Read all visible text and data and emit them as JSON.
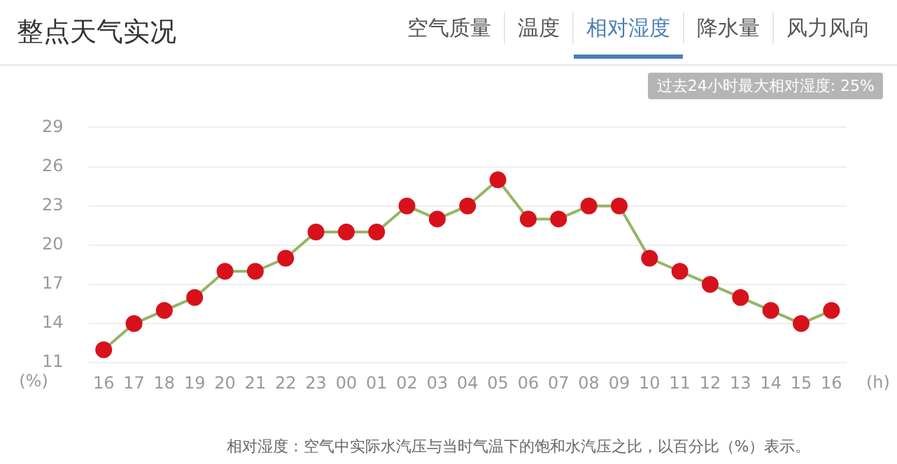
{
  "chart_data": {
    "type": "line",
    "title": "整点天气实况",
    "xlabel": "(h)",
    "ylabel": "(%)",
    "categories": [
      "16",
      "17",
      "18",
      "19",
      "20",
      "21",
      "22",
      "23",
      "00",
      "01",
      "02",
      "03",
      "04",
      "05",
      "06",
      "07",
      "08",
      "09",
      "10",
      "11",
      "12",
      "13",
      "14",
      "15",
      "16"
    ],
    "series": [
      {
        "color": "#94b565",
        "values": [
          12,
          14,
          15,
          16,
          18,
          18,
          19,
          21,
          21,
          21,
          23,
          22,
          23,
          25,
          22,
          22,
          23,
          23,
          19,
          18,
          17,
          16,
          15,
          14,
          15
        ]
      }
    ],
    "ylim": [
      11,
      29
    ],
    "yticks": [
      11,
      14,
      17,
      20,
      23,
      26,
      29
    ],
    "grid": "y",
    "legend": false,
    "marker": "circle",
    "line_style": "solid",
    "annotations": [
      "空气质量",
      "温度",
      "相对湿度",
      "降水量",
      "风力风向",
      "过去24小时最大相对湿度: 25%",
      "相对湿度：空气中实际水汽压与当时气温下的饱和水汽压之比，以百分比（%）表示。"
    ]
  }
}
